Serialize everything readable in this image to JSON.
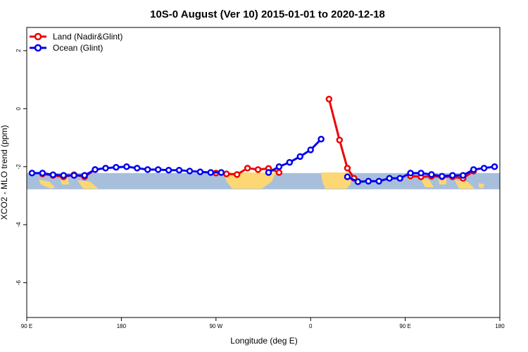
{
  "chart_data": {
    "type": "line",
    "title": "10S-0 August (Ver 10)   2015-01-01 to 2020-12-18",
    "xlabel": "Longitude (deg E)",
    "ylabel": "XCO2 - MLO trend (ppm)",
    "xlim": [
      90,
      450
    ],
    "ylim": [
      -7.2,
      2.8
    ],
    "xticks": [
      {
        "value": 90,
        "label": "90 E"
      },
      {
        "value": 162,
        "label": "180"
      },
      {
        "value": 234,
        "label": "90 W"
      },
      {
        "value": 306,
        "label": "0"
      },
      {
        "value": 378,
        "label": "90 E"
      },
      {
        "value": 450,
        "label": "180"
      }
    ],
    "yticks": [
      2,
      0,
      -2,
      -4,
      -6
    ],
    "grid": false,
    "legend_position": "top-left",
    "map_band": {
      "ymin": -2.78,
      "ymax": -2.22,
      "ocean_color": "#a8bfdc",
      "land_color": "#fdd774"
    },
    "series": [
      {
        "name": "Land (Nadir&Glint)",
        "color": "#ee0000",
        "segments": [
          [
            [
              102,
              -2.25
            ],
            [
              110,
              -2.3
            ],
            [
              118,
              -2.35
            ],
            [
              126,
              -2.28
            ],
            [
              134,
              -2.35
            ],
            [
              142,
              -2.1
            ]
          ],
          [
            [
              234,
              -2.22
            ],
            [
              242,
              -2.25
            ],
            [
              250,
              -2.27
            ],
            [
              258,
              -2.05
            ],
            [
              266,
              -2.1
            ],
            [
              274,
              -2.06
            ],
            [
              282,
              -2.2
            ]
          ],
          [
            [
              320,
              0.33
            ],
            [
              328,
              -1.08
            ],
            [
              334,
              -2.05
            ],
            [
              339,
              -2.4
            ]
          ],
          [
            [
              382,
              -2.32
            ],
            [
              390,
              -2.35
            ],
            [
              398,
              -2.33
            ],
            [
              406,
              -2.35
            ],
            [
              414,
              -2.35
            ],
            [
              422,
              -2.4
            ],
            [
              430,
              -2.15
            ]
          ]
        ]
      },
      {
        "name": "Ocean (Glint)",
        "color": "#0000ee",
        "segments": [
          [
            [
              94,
              -2.22
            ],
            [
              102,
              -2.22
            ],
            [
              110,
              -2.28
            ],
            [
              118,
              -2.3
            ],
            [
              126,
              -2.3
            ],
            [
              134,
              -2.3
            ],
            [
              142,
              -2.1
            ],
            [
              150,
              -2.05
            ],
            [
              158,
              -2.02
            ],
            [
              166,
              -2.0
            ],
            [
              174,
              -2.05
            ],
            [
              182,
              -2.1
            ],
            [
              190,
              -2.1
            ],
            [
              198,
              -2.12
            ],
            [
              206,
              -2.12
            ],
            [
              214,
              -2.15
            ],
            [
              222,
              -2.18
            ],
            [
              230,
              -2.2
            ],
            [
              238,
              -2.2
            ]
          ],
          [
            [
              274,
              -2.2
            ],
            [
              282,
              -2.0
            ],
            [
              290,
              -1.85
            ],
            [
              298,
              -1.65
            ],
            [
              306,
              -1.42
            ],
            [
              314,
              -1.05
            ]
          ],
          [
            [
              334,
              -2.35
            ],
            [
              342,
              -2.52
            ],
            [
              350,
              -2.5
            ],
            [
              358,
              -2.5
            ],
            [
              366,
              -2.4
            ],
            [
              374,
              -2.4
            ],
            [
              382,
              -2.22
            ],
            [
              390,
              -2.22
            ],
            [
              398,
              -2.27
            ],
            [
              406,
              -2.33
            ],
            [
              414,
              -2.3
            ],
            [
              422,
              -2.3
            ],
            [
              430,
              -2.1
            ],
            [
              438,
              -2.05
            ],
            [
              446,
              -2.0
            ]
          ]
        ]
      }
    ]
  }
}
